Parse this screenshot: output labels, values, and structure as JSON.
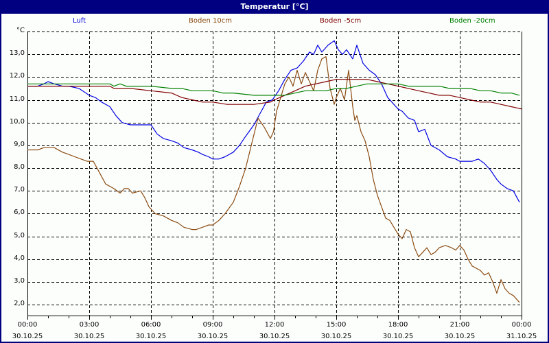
{
  "window": {
    "title": "Temperatur [°C]"
  },
  "legend": [
    {
      "label": "Luft",
      "color": "#0000e0"
    },
    {
      "label": "Boden 10cm",
      "color": "#8b4a10"
    },
    {
      "label": "Boden -5cm",
      "color": "#800000"
    },
    {
      "label": "Boden -20cm",
      "color": "#008000"
    }
  ],
  "axes": {
    "y_unit": "°C",
    "y_ticks": [
      "13,0",
      "12,0",
      "11,0",
      "10,0",
      "9,0",
      "8,0",
      "7,0",
      "6,0",
      "5,0",
      "4,0",
      "3,0",
      "2,0"
    ],
    "x_ticks": [
      {
        "time": "00:00",
        "date": "30.10.25"
      },
      {
        "time": "03:00",
        "date": "30.10.25"
      },
      {
        "time": "06:00",
        "date": "30.10.25"
      },
      {
        "time": "09:00",
        "date": "30.10.25"
      },
      {
        "time": "12:00",
        "date": "30.10.25"
      },
      {
        "time": "15:00",
        "date": "30.10.25"
      },
      {
        "time": "18:00",
        "date": "30.10.25"
      },
      {
        "time": "21:00",
        "date": "30.10.25"
      },
      {
        "time": "00:00",
        "date": "31.10.25"
      }
    ]
  },
  "chart_data": {
    "type": "line",
    "title": "Temperatur [°C]",
    "xlabel": "",
    "ylabel": "°C",
    "xlim_hours": [
      0,
      24
    ],
    "ylim": [
      1.5,
      14.0
    ],
    "grid": true,
    "legend_position": "top",
    "x_tick_labels": [
      "00:00 30.10.25",
      "03:00 30.10.25",
      "06:00 30.10.25",
      "09:00 30.10.25",
      "12:00 30.10.25",
      "15:00 30.10.25",
      "18:00 30.10.25",
      "21:00 30.10.25",
      "00:00 31.10.25"
    ],
    "y_tick_labels": [
      "2,0",
      "3,0",
      "4,0",
      "5,0",
      "6,0",
      "7,0",
      "8,0",
      "9,0",
      "10,0",
      "11,0",
      "12,0",
      "13,0"
    ],
    "series": [
      {
        "name": "Luft",
        "color": "#0000e0",
        "x": [
          0,
          0.5,
          0.8,
          1.0,
          1.3,
          1.7,
          2.0,
          2.5,
          3.0,
          3.3,
          3.6,
          4.0,
          4.3,
          4.6,
          5.0,
          5.3,
          5.7,
          6.0,
          6.3,
          6.6,
          7.0,
          7.3,
          7.6,
          8.0,
          8.3,
          8.5,
          8.8,
          9.0,
          9.3,
          9.6,
          10.0,
          10.3,
          10.6,
          11.0,
          11.3,
          11.6,
          11.9,
          12.2,
          12.5,
          12.8,
          13.1,
          13.4,
          13.7,
          13.9,
          14.1,
          14.3,
          14.6,
          14.9,
          15.1,
          15.3,
          15.5,
          15.8,
          16.0,
          16.3,
          16.6,
          16.9,
          17.2,
          17.5,
          17.8,
          18.0,
          18.2,
          18.5,
          18.8,
          19.0,
          19.3,
          19.6,
          20.0,
          20.4,
          20.8,
          21.0,
          21.3,
          21.6,
          21.9,
          22.2,
          22.5,
          22.8,
          23.0,
          23.3,
          23.6,
          23.9
        ],
        "y": [
          11.6,
          11.6,
          11.7,
          11.8,
          11.7,
          11.6,
          11.6,
          11.5,
          11.2,
          11.1,
          10.9,
          10.7,
          10.3,
          10.0,
          9.9,
          9.9,
          9.9,
          9.9,
          9.5,
          9.3,
          9.2,
          9.1,
          8.9,
          8.8,
          8.7,
          8.6,
          8.5,
          8.4,
          8.4,
          8.5,
          8.7,
          9.0,
          9.4,
          9.9,
          10.4,
          10.9,
          11.0,
          11.4,
          11.9,
          12.3,
          12.4,
          12.7,
          13.1,
          13.0,
          13.4,
          13.1,
          13.4,
          13.6,
          13.2,
          13.0,
          13.2,
          12.8,
          13.4,
          12.6,
          12.3,
          12.1,
          11.7,
          11.1,
          10.8,
          10.6,
          10.5,
          10.2,
          10.1,
          9.6,
          9.7,
          9.0,
          8.8,
          8.5,
          8.4,
          8.3,
          8.3,
          8.3,
          8.4,
          8.2,
          7.9,
          7.5,
          7.3,
          7.1,
          7.0,
          6.5
        ]
      },
      {
        "name": "Boden 10cm",
        "color": "#8b4a10",
        "x": [
          0,
          0.5,
          0.8,
          1.3,
          1.7,
          2.0,
          2.3,
          2.6,
          2.9,
          3.2,
          3.5,
          3.8,
          4.2,
          4.5,
          4.7,
          4.9,
          5.1,
          5.5,
          5.7,
          5.9,
          6.2,
          6.6,
          7.0,
          7.3,
          7.6,
          8.0,
          8.2,
          8.5,
          8.8,
          9.0,
          9.3,
          9.6,
          10.0,
          10.3,
          10.6,
          10.9,
          11.2,
          11.5,
          11.8,
          11.95,
          12.1,
          12.3,
          12.5,
          12.7,
          12.9,
          13.1,
          13.3,
          13.5,
          13.7,
          13.9,
          14.1,
          14.3,
          14.5,
          14.7,
          14.9,
          15.0,
          15.2,
          15.4,
          15.6,
          15.8,
          15.9,
          16.0,
          16.2,
          16.4,
          16.6,
          16.8,
          17.0,
          17.2,
          17.4,
          17.6,
          17.8,
          18.0,
          18.2,
          18.4,
          18.6,
          18.8,
          19.0,
          19.2,
          19.4,
          19.6,
          19.8,
          20.0,
          20.3,
          20.6,
          20.8,
          21.0,
          21.2,
          21.4,
          21.6,
          21.8,
          22.0,
          22.2,
          22.4,
          22.6,
          22.8,
          23.0,
          23.2,
          23.4,
          23.6,
          23.9
        ],
        "y": [
          8.8,
          8.8,
          8.9,
          8.9,
          8.7,
          8.6,
          8.5,
          8.4,
          8.3,
          8.3,
          7.8,
          7.3,
          7.1,
          6.9,
          7.1,
          7.1,
          6.9,
          7.0,
          6.7,
          6.3,
          6.0,
          5.9,
          5.7,
          5.6,
          5.4,
          5.3,
          5.3,
          5.4,
          5.5,
          5.5,
          5.7,
          6.0,
          6.5,
          7.2,
          8.0,
          9.1,
          10.2,
          9.8,
          9.3,
          9.6,
          10.5,
          11.1,
          11.7,
          12.0,
          11.6,
          12.3,
          11.7,
          12.2,
          11.8,
          11.4,
          12.3,
          12.8,
          12.9,
          11.5,
          10.8,
          11.1,
          11.5,
          11.0,
          12.3,
          10.7,
          10.1,
          10.3,
          9.6,
          9.2,
          8.5,
          7.5,
          6.8,
          6.3,
          5.8,
          5.7,
          5.4,
          5.1,
          4.9,
          5.3,
          5.2,
          4.5,
          4.1,
          4.3,
          4.5,
          4.2,
          4.3,
          4.5,
          4.6,
          4.5,
          4.4,
          4.6,
          4.4,
          4.0,
          3.7,
          3.6,
          3.5,
          3.3,
          3.4,
          3.0,
          2.5,
          3.1,
          2.7,
          2.5,
          2.4,
          2.1
        ]
      },
      {
        "name": "Boden -5cm",
        "color": "#800000",
        "x": [
          0,
          1,
          2,
          3,
          4,
          4.2,
          5.0,
          6.0,
          7.0,
          7.5,
          8.0,
          8.5,
          9.0,
          9.7,
          10.0,
          11.0,
          11.8,
          12.0,
          12.5,
          13.0,
          13.5,
          14.0,
          14.5,
          15.0,
          15.5,
          16.0,
          16.5,
          17.0,
          17.5,
          18.0,
          18.5,
          19.0,
          19.5,
          20.0,
          20.5,
          21.0,
          21.5,
          22.0,
          22.5,
          23.0,
          23.5,
          24.0
        ],
        "y": [
          11.6,
          11.6,
          11.6,
          11.6,
          11.6,
          11.5,
          11.5,
          11.4,
          11.3,
          11.1,
          11.0,
          10.9,
          10.9,
          10.8,
          10.8,
          10.8,
          10.9,
          11.0,
          11.2,
          11.4,
          11.6,
          11.7,
          11.8,
          11.9,
          11.9,
          11.9,
          11.9,
          11.8,
          11.7,
          11.6,
          11.5,
          11.4,
          11.3,
          11.2,
          11.2,
          11.1,
          11.0,
          10.9,
          10.9,
          10.8,
          10.7,
          10.6
        ]
      },
      {
        "name": "Boden -20cm",
        "color": "#008000",
        "x": [
          0,
          1,
          2,
          3,
          4,
          4.2,
          4.5,
          4.8,
          5.0,
          6.0,
          7.0,
          7.5,
          8.0,
          9.0,
          9.5,
          10.0,
          11.0,
          11.5,
          12.0,
          12.5,
          13.0,
          13.5,
          14.0,
          14.5,
          15.0,
          15.5,
          16.0,
          16.5,
          17.0,
          18.0,
          18.5,
          19.0,
          19.5,
          20.0,
          20.5,
          21.0,
          21.5,
          22.0,
          22.5,
          23.0,
          23.5,
          23.9
        ],
        "y": [
          11.7,
          11.7,
          11.7,
          11.7,
          11.7,
          11.6,
          11.7,
          11.6,
          11.6,
          11.6,
          11.5,
          11.5,
          11.4,
          11.4,
          11.3,
          11.3,
          11.2,
          11.2,
          11.2,
          11.2,
          11.3,
          11.4,
          11.4,
          11.4,
          11.5,
          11.5,
          11.6,
          11.7,
          11.7,
          11.7,
          11.6,
          11.6,
          11.6,
          11.6,
          11.5,
          11.5,
          11.5,
          11.4,
          11.4,
          11.3,
          11.3,
          11.2
        ]
      }
    ]
  }
}
